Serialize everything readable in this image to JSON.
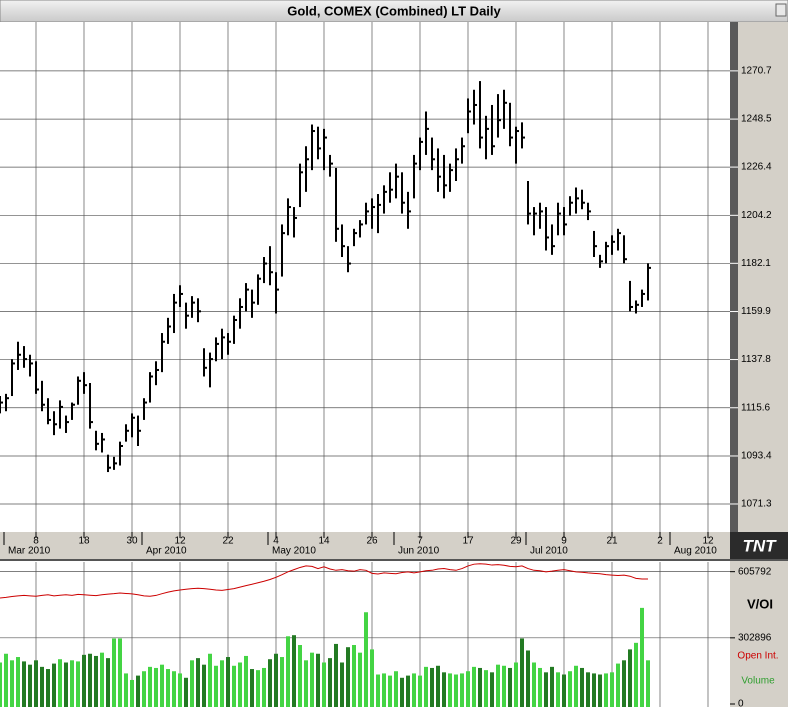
{
  "chart_data": [
    {
      "type": "ohlc",
      "title": "Gold, COMEX (Combined) LT Daily",
      "logo": "TNT",
      "categories": [
        null,
        null,
        null,
        null,
        null,
        null,
        "8",
        null,
        null,
        null,
        null,
        null,
        null,
        null,
        "18",
        null,
        null,
        null,
        null,
        null,
        null,
        null,
        "30",
        null,
        null,
        null,
        null,
        null,
        null,
        null,
        "12",
        null,
        null,
        null,
        null,
        null,
        null,
        null,
        "22",
        null,
        null,
        null,
        null,
        null,
        null,
        null,
        "4",
        null,
        null,
        null,
        null,
        null,
        null,
        null,
        "14",
        null,
        null,
        null,
        null,
        null,
        null,
        null,
        "26",
        null,
        null,
        null,
        null,
        null,
        null,
        null,
        "7",
        null,
        null,
        null,
        null,
        null,
        null,
        null,
        "17",
        null,
        null,
        null,
        null,
        null,
        null,
        null,
        "29",
        null,
        null,
        null,
        null,
        null,
        null,
        null,
        "9",
        null,
        null,
        null,
        null,
        null,
        null,
        null,
        "21",
        null,
        null,
        null,
        null,
        null,
        null,
        null,
        "2",
        null,
        null,
        null,
        null,
        null,
        null,
        null,
        "12",
        null,
        null,
        null
      ],
      "month_labels": [
        null,
        "Mar 2010",
        null,
        null,
        null,
        null,
        null,
        null,
        null,
        null,
        null,
        null,
        null,
        null,
        null,
        null,
        null,
        null,
        null,
        null,
        null,
        null,
        null,
        null,
        "Apr 2010",
        null,
        null,
        null,
        null,
        null,
        null,
        null,
        null,
        null,
        null,
        null,
        null,
        null,
        null,
        null,
        null,
        null,
        null,
        null,
        null,
        "May 2010",
        null,
        null,
        null,
        null,
        null,
        null,
        null,
        null,
        null,
        null,
        null,
        null,
        null,
        null,
        null,
        null,
        null,
        null,
        null,
        null,
        "Jun 2010",
        null,
        null,
        null,
        null,
        null,
        null,
        null,
        null,
        null,
        null,
        null,
        null,
        null,
        null,
        null,
        null,
        null,
        null,
        null,
        null,
        null,
        "Jul 2010",
        null,
        null,
        null,
        null,
        null,
        null,
        null,
        null,
        null,
        null,
        null,
        null,
        null,
        null,
        null,
        null,
        null,
        null,
        null,
        null,
        null,
        null,
        null,
        "Aug 2010",
        null,
        null,
        null,
        null,
        null,
        null,
        null,
        null,
        null
      ],
      "color": "#000000",
      "high": [
        1121,
        1122,
        1138,
        1146,
        1144,
        1140,
        1137,
        1128,
        1120,
        1114,
        1119,
        1112,
        1118,
        1130,
        1132,
        1127,
        1105,
        1104,
        1094,
        1093,
        1100,
        1108,
        1113,
        1112,
        1120,
        1132,
        1137,
        1150,
        1157,
        1168,
        1172,
        1164,
        1167,
        1166,
        1143,
        1141,
        1148,
        1152,
        1150,
        1158,
        1166,
        1173,
        1170,
        1177,
        1185,
        1190,
        1178,
        1200,
        1212,
        1208,
        1228,
        1236,
        1246,
        1245,
        1244,
        1232,
        1226,
        1200,
        1190,
        1198,
        1202,
        1210,
        1212,
        1214,
        1218,
        1224,
        1228,
        1224,
        1215,
        1232,
        1240,
        1252,
        1240,
        1235,
        1232,
        1228,
        1235,
        1240,
        1258,
        1262,
        1266,
        1250,
        1255,
        1260,
        1262,
        1256,
        1245,
        1247,
        1220,
        1208,
        1210,
        1208,
        1200,
        1210,
        1208,
        1213,
        1217,
        1216,
        1210,
        1197,
        1186,
        1192,
        1195,
        1198,
        1195,
        1174,
        1165,
        1170,
        1182,
        null,
        null,
        null,
        null,
        null,
        null,
        null,
        null,
        null,
        null,
        null,
        null,
        null
      ],
      "low": [
        1113,
        1114,
        1121,
        1133,
        1134,
        1130,
        1122,
        1114,
        1108,
        1103,
        1106,
        1104,
        1110,
        1117,
        1122,
        1106,
        1096,
        1095,
        1086,
        1087,
        1089,
        1100,
        1102,
        1098,
        1110,
        1118,
        1126,
        1132,
        1145,
        1150,
        1162,
        1152,
        1157,
        1155,
        1130,
        1125,
        1137,
        1138,
        1140,
        1145,
        1152,
        1160,
        1157,
        1163,
        1173,
        1172,
        1159,
        1176,
        1195,
        1194,
        1208,
        1215,
        1225,
        1230,
        1225,
        1222,
        1192,
        1185,
        1178,
        1190,
        1194,
        1200,
        1198,
        1196,
        1205,
        1210,
        1212,
        1205,
        1198,
        1212,
        1225,
        1232,
        1225,
        1215,
        1212,
        1215,
        1220,
        1228,
        1242,
        1246,
        1235,
        1230,
        1232,
        1240,
        1244,
        1236,
        1228,
        1235,
        1200,
        1195,
        1198,
        1188,
        1186,
        1195,
        1195,
        1204,
        1205,
        1207,
        1202,
        1185,
        1180,
        1182,
        1186,
        1188,
        1182,
        1160,
        1159,
        1162,
        1165,
        null,
        null,
        null,
        null,
        null,
        null,
        null,
        null,
        null,
        null,
        null,
        null,
        null
      ],
      "close": [
        1118,
        1120,
        1136,
        1140,
        1138,
        1136,
        1124,
        1117,
        1110,
        1108,
        1116,
        1109,
        1117,
        1128,
        1126,
        1109,
        1099,
        1101,
        1088,
        1090,
        1098,
        1105,
        1111,
        1105,
        1118,
        1130,
        1133,
        1146,
        1153,
        1164,
        1168,
        1158,
        1164,
        1160,
        1134,
        1138,
        1145,
        1148,
        1146,
        1156,
        1162,
        1170,
        1164,
        1175,
        1182,
        1178,
        1170,
        1196,
        1208,
        1203,
        1224,
        1230,
        1243,
        1235,
        1240,
        1228,
        1198,
        1190,
        1182,
        1196,
        1200,
        1206,
        1208,
        1209,
        1215,
        1216,
        1222,
        1210,
        1206,
        1228,
        1238,
        1244,
        1230,
        1222,
        1218,
        1225,
        1230,
        1236,
        1252,
        1255,
        1240,
        1244,
        1236,
        1248,
        1256,
        1240,
        1243,
        1240,
        1205,
        1205,
        1206,
        1194,
        1190,
        1205,
        1200,
        1210,
        1212,
        1210,
        1206,
        1190,
        1183,
        1190,
        1192,
        1196,
        1184,
        1162,
        1163,
        1168,
        1180,
        null,
        null,
        null,
        null,
        null,
        null,
        null,
        null,
        null,
        null,
        null,
        null,
        null
      ],
      "ylim": [
        1058.4,
        1293.2
      ],
      "yticks": [
        1071.3,
        1093.4,
        1115.6,
        1137.8,
        1159.9,
        1182.1,
        1204.2,
        1226.4,
        1248.5,
        1270.7
      ],
      "grid": true
    },
    {
      "type": "volume",
      "title": "V/OI",
      "series": [
        {
          "name": "Open Int.",
          "color": "#cc0000",
          "values": [
            485000,
            488000,
            492000,
            495000,
            497000,
            495000,
            493000,
            497000,
            500000,
            495000,
            498000,
            500000,
            497000,
            502000,
            500000,
            498000,
            496000,
            500000,
            503000,
            505000,
            508000,
            506000,
            504000,
            500000,
            495000,
            493000,
            497000,
            505000,
            512000,
            518000,
            522000,
            525000,
            528000,
            530000,
            528000,
            525000,
            522000,
            520000,
            524000,
            528000,
            535000,
            542000,
            548000,
            555000,
            562000,
            570000,
            580000,
            592000,
            605000,
            615000,
            625000,
            632000,
            630000,
            620000,
            628000,
            618000,
            612000,
            615000,
            610000,
            608000,
            615000,
            612000,
            598000,
            595000,
            600000,
            598000,
            596000,
            602000,
            605000,
            600000,
            605000,
            610000,
            612000,
            618000,
            620000,
            615000,
            612000,
            620000,
            632000,
            640000,
            642000,
            640000,
            636000,
            638000,
            635000,
            630000,
            628000,
            632000,
            620000,
            612000,
            610000,
            605000,
            608000,
            612000,
            615000,
            610000,
            605000,
            603000,
            600000,
            598000,
            596000,
            592000,
            590000,
            588000,
            590000,
            585000,
            575000,
            572000,
            572000,
            null,
            null,
            null,
            null,
            null,
            null,
            null,
            null,
            null,
            null,
            null,
            null,
            null
          ]
        },
        {
          "name": "Volume",
          "color": "#2f9e2f",
          "up_color": "#44d444",
          "down_color": "#237a23",
          "values": [
            190000,
            230000,
            200000,
            215000,
            195000,
            180000,
            200000,
            170000,
            160000,
            185000,
            205000,
            190000,
            200000,
            195000,
            225000,
            230000,
            220000,
            235000,
            210000,
            300000,
            300000,
            140000,
            110000,
            130000,
            150000,
            170000,
            165000,
            180000,
            160000,
            150000,
            140000,
            120000,
            200000,
            210000,
            180000,
            230000,
            175000,
            200000,
            215000,
            175000,
            190000,
            220000,
            160000,
            155000,
            165000,
            205000,
            230000,
            215000,
            310000,
            315000,
            270000,
            200000,
            235000,
            230000,
            190000,
            210000,
            275000,
            190000,
            260000,
            270000,
            235000,
            420000,
            250000,
            135000,
            140000,
            130000,
            150000,
            120000,
            130000,
            140000,
            130000,
            170000,
            165000,
            175000,
            145000,
            140000,
            135000,
            140000,
            150000,
            170000,
            165000,
            155000,
            145000,
            180000,
            175000,
            165000,
            190000,
            300000,
            245000,
            190000,
            165000,
            145000,
            170000,
            145000,
            135000,
            150000,
            175000,
            165000,
            145000,
            140000,
            135000,
            140000,
            145000,
            185000,
            200000,
            250000,
            280000,
            440000,
            200000,
            null,
            null,
            null,
            null,
            null,
            null,
            null,
            null,
            null,
            null,
            null,
            null,
            null
          ]
        }
      ],
      "ylim": [
        0,
        650000
      ],
      "yticks": [
        0,
        302896,
        605792
      ],
      "grid": true
    }
  ]
}
